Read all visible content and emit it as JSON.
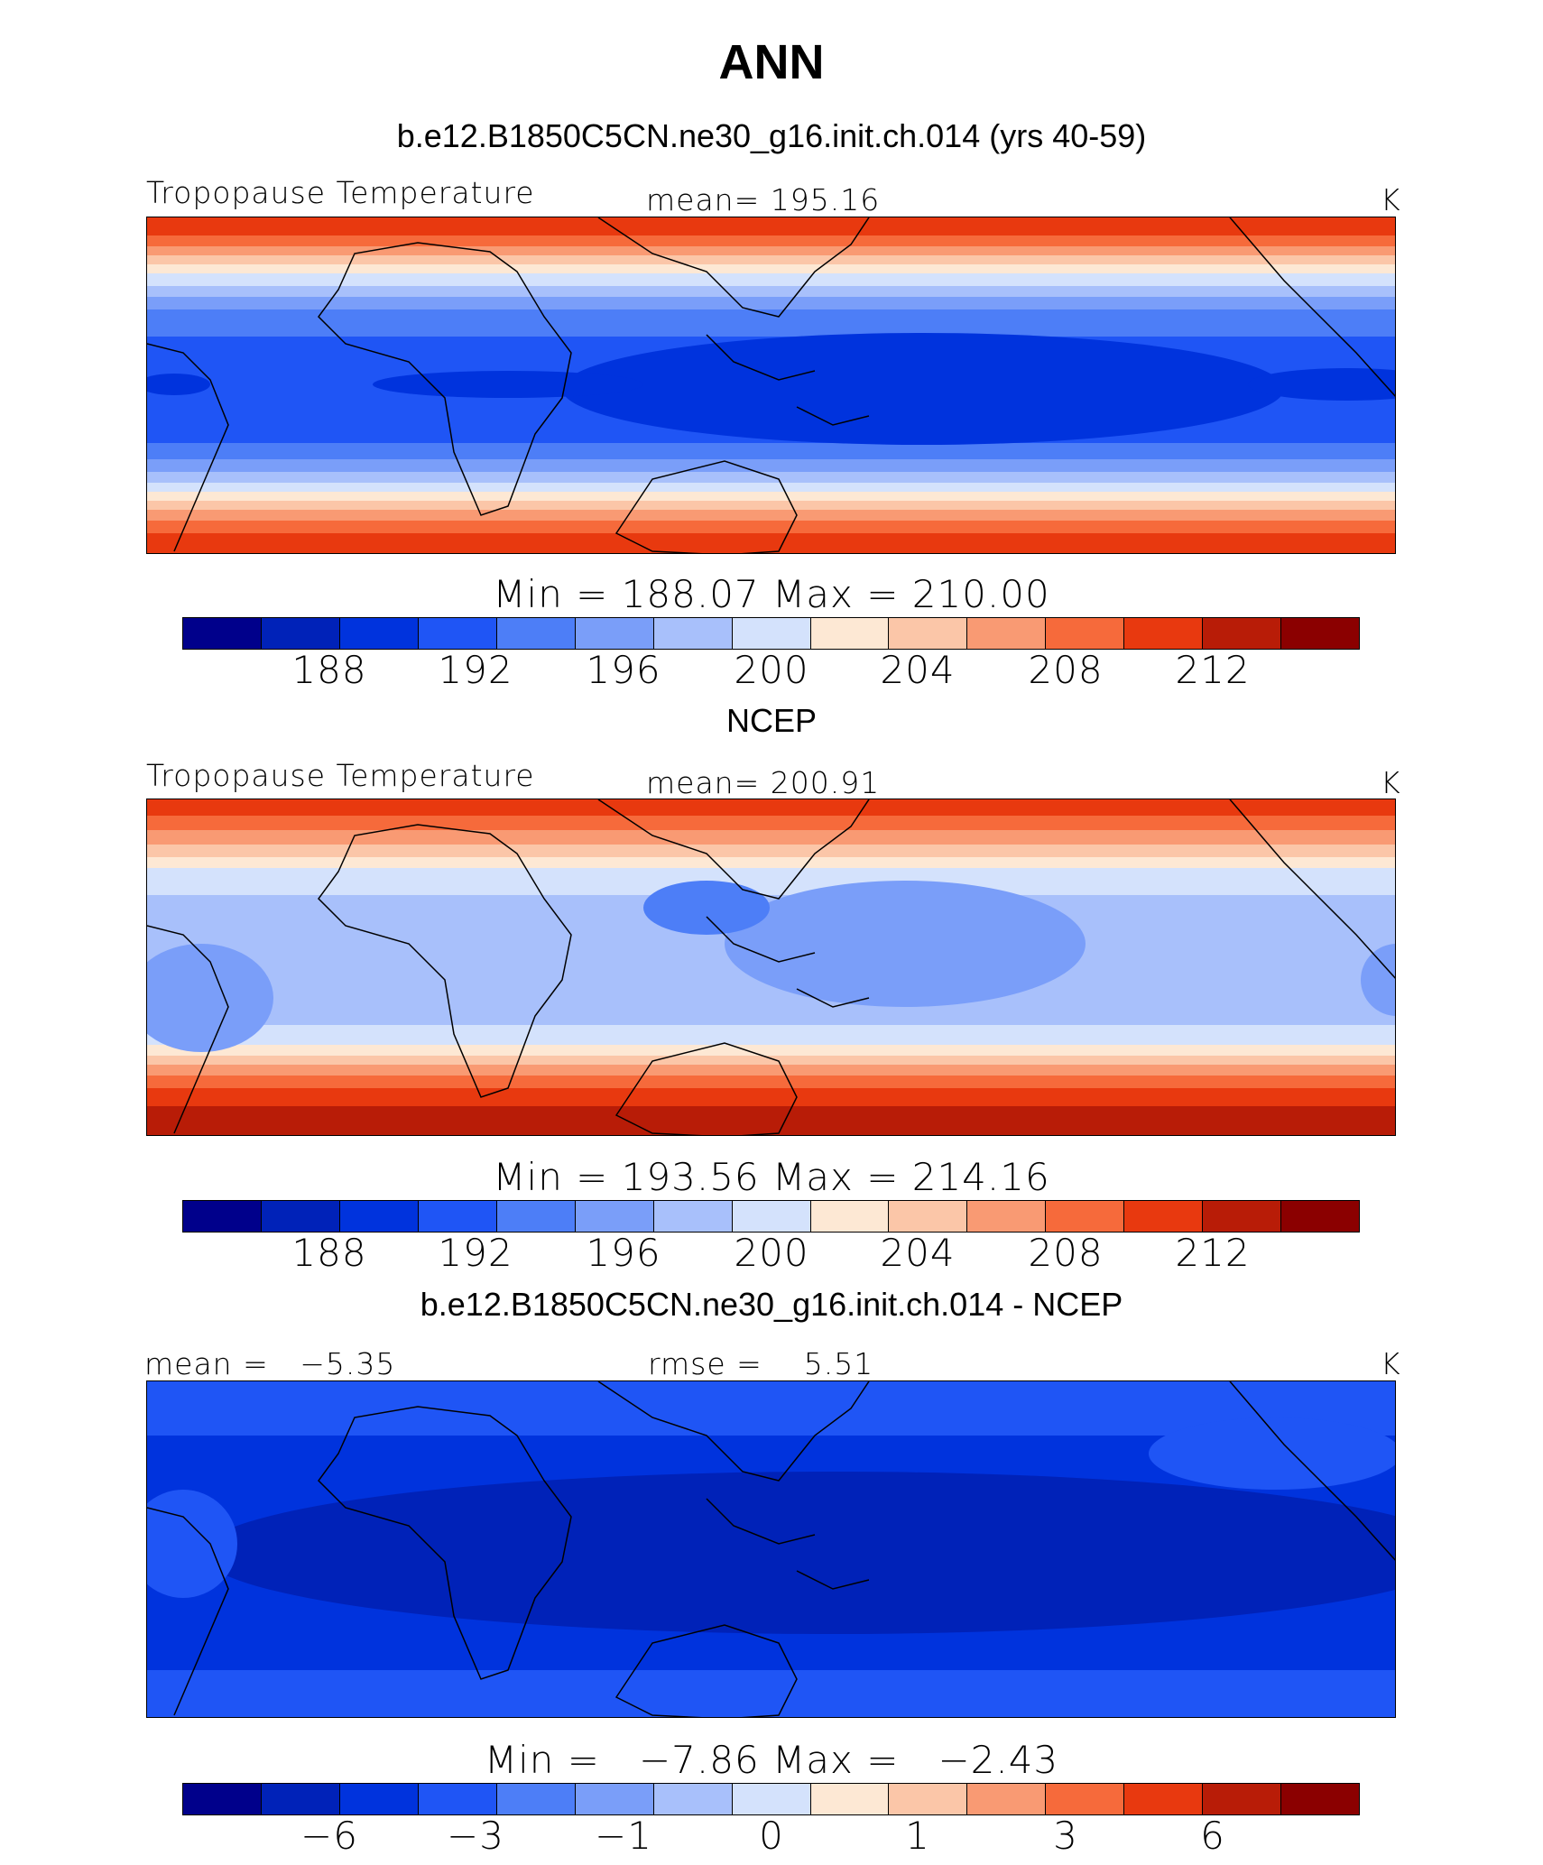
{
  "title": "ANN",
  "palette": [
    "#00008b",
    "#0022b8",
    "#0033dd",
    "#1f55f5",
    "#4d7ef7",
    "#7a9ef9",
    "#a8c0fb",
    "#d4e2fc",
    "#fde8d4",
    "#fbc6a8",
    "#f99a73",
    "#f66a3b",
    "#e8390f",
    "#b81c07",
    "#8b0000"
  ],
  "panels": [
    {
      "subtitle": "b.e12.B1850C5CN.ne30_g16.init.ch.014 (yrs 40-59)",
      "left_label": "Tropopause Temperature",
      "center_label": "mean= 195.16",
      "units": "K",
      "minmax": "Min = 188.07 Max = 210.00",
      "ticks": [
        "188",
        "192",
        "196",
        "200",
        "204",
        "208",
        "212"
      ]
    },
    {
      "subtitle": "NCEP",
      "left_label": "Tropopause Temperature",
      "center_label": "mean= 200.91",
      "units": "K",
      "minmax": "Min = 193.56 Max = 214.16",
      "ticks": [
        "188",
        "192",
        "196",
        "200",
        "204",
        "208",
        "212"
      ]
    },
    {
      "subtitle": "b.e12.B1850C5CN.ne30_g16.init.ch.014 - NCEP",
      "left_label": "mean =   −5.35",
      "center_label": "rmse =    5.51",
      "units": "K",
      "minmax": "Min =   −7.86 Max =   −2.43",
      "ticks": [
        "−6",
        "−3",
        "−1",
        "0",
        "1",
        "3",
        "6"
      ]
    }
  ]
}
